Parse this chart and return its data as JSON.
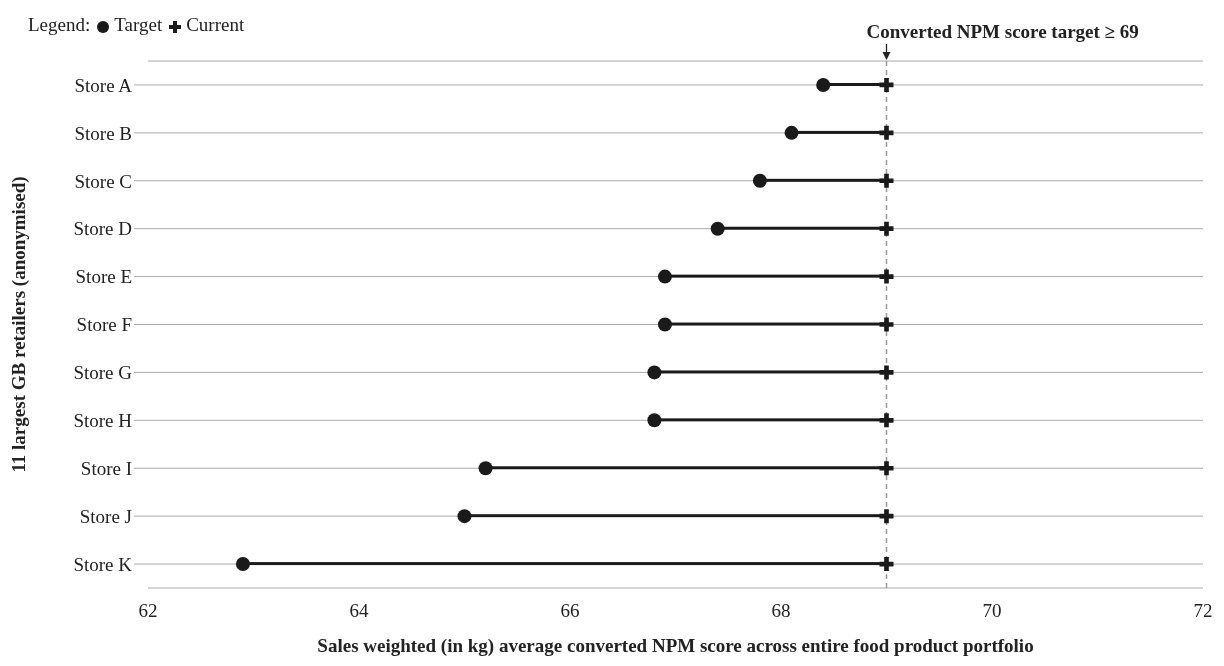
{
  "chart_data": {
    "type": "lollipop",
    "orientation": "horizontal",
    "xlabel": "Sales weighted (in kg) average converted NPM score across entire food product portfolio",
    "ylabel": "11 largest GB retailers (anonymised)",
    "legend_title": "Legend:",
    "legend": "top left",
    "grid": "y",
    "categories": [
      "Store A",
      "Store B",
      "Store C",
      "Store D",
      "Store E",
      "Store F",
      "Store G",
      "Store H",
      "Store I",
      "Store J",
      "Store K"
    ],
    "series": [
      {
        "name": "Target",
        "color": "#1a1a1a",
        "marker": "circle",
        "values": [
          68.4,
          68.1,
          67.8,
          67.4,
          66.9,
          66.9,
          66.8,
          66.8,
          65.2,
          65.0,
          62.9
        ]
      },
      {
        "name": "Current",
        "color": "#1a1a1a",
        "marker": "cross",
        "values": [
          69,
          69,
          69,
          69,
          69,
          69,
          69,
          69,
          69,
          69,
          69
        ]
      }
    ],
    "xlim": [
      62,
      72
    ],
    "xticks": [
      62,
      64,
      66,
      68,
      70,
      72
    ],
    "ref_lines": [
      {
        "axis": "x",
        "value": 69,
        "label": "Converted NPM score target ≥ 69",
        "color": "#999999",
        "line_style": "dashed"
      }
    ]
  }
}
